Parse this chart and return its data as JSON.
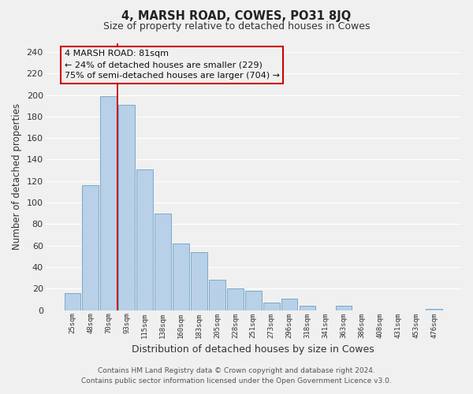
{
  "title": "4, MARSH ROAD, COWES, PO31 8JQ",
  "subtitle": "Size of property relative to detached houses in Cowes",
  "xlabel": "Distribution of detached houses by size in Cowes",
  "ylabel": "Number of detached properties",
  "bar_color": "#b8d0e8",
  "bar_edge_color": "#7aaaca",
  "background_color": "#f0f0f0",
  "grid_color": "#ffffff",
  "annotation_box_edge": "#cc0000",
  "annotation_line_color": "#cc0000",
  "annotation_text_line1": "4 MARSH ROAD: 81sqm",
  "annotation_text_line2": "← 24% of detached houses are smaller (229)",
  "annotation_text_line3": "75% of semi-detached houses are larger (704) →",
  "marker_bin_index": 2,
  "categories": [
    "25sqm",
    "48sqm",
    "70sqm",
    "93sqm",
    "115sqm",
    "138sqm",
    "160sqm",
    "183sqm",
    "205sqm",
    "228sqm",
    "251sqm",
    "273sqm",
    "296sqm",
    "318sqm",
    "341sqm",
    "363sqm",
    "386sqm",
    "408sqm",
    "431sqm",
    "453sqm",
    "476sqm"
  ],
  "values": [
    16,
    116,
    199,
    191,
    131,
    90,
    62,
    54,
    28,
    20,
    18,
    7,
    11,
    4,
    0,
    4,
    0,
    0,
    0,
    0,
    1
  ],
  "ylim": [
    0,
    248
  ],
  "yticks": [
    0,
    20,
    40,
    60,
    80,
    100,
    120,
    140,
    160,
    180,
    200,
    220,
    240
  ],
  "footer_line1": "Contains HM Land Registry data © Crown copyright and database right 2024.",
  "footer_line2": "Contains public sector information licensed under the Open Government Licence v3.0."
}
